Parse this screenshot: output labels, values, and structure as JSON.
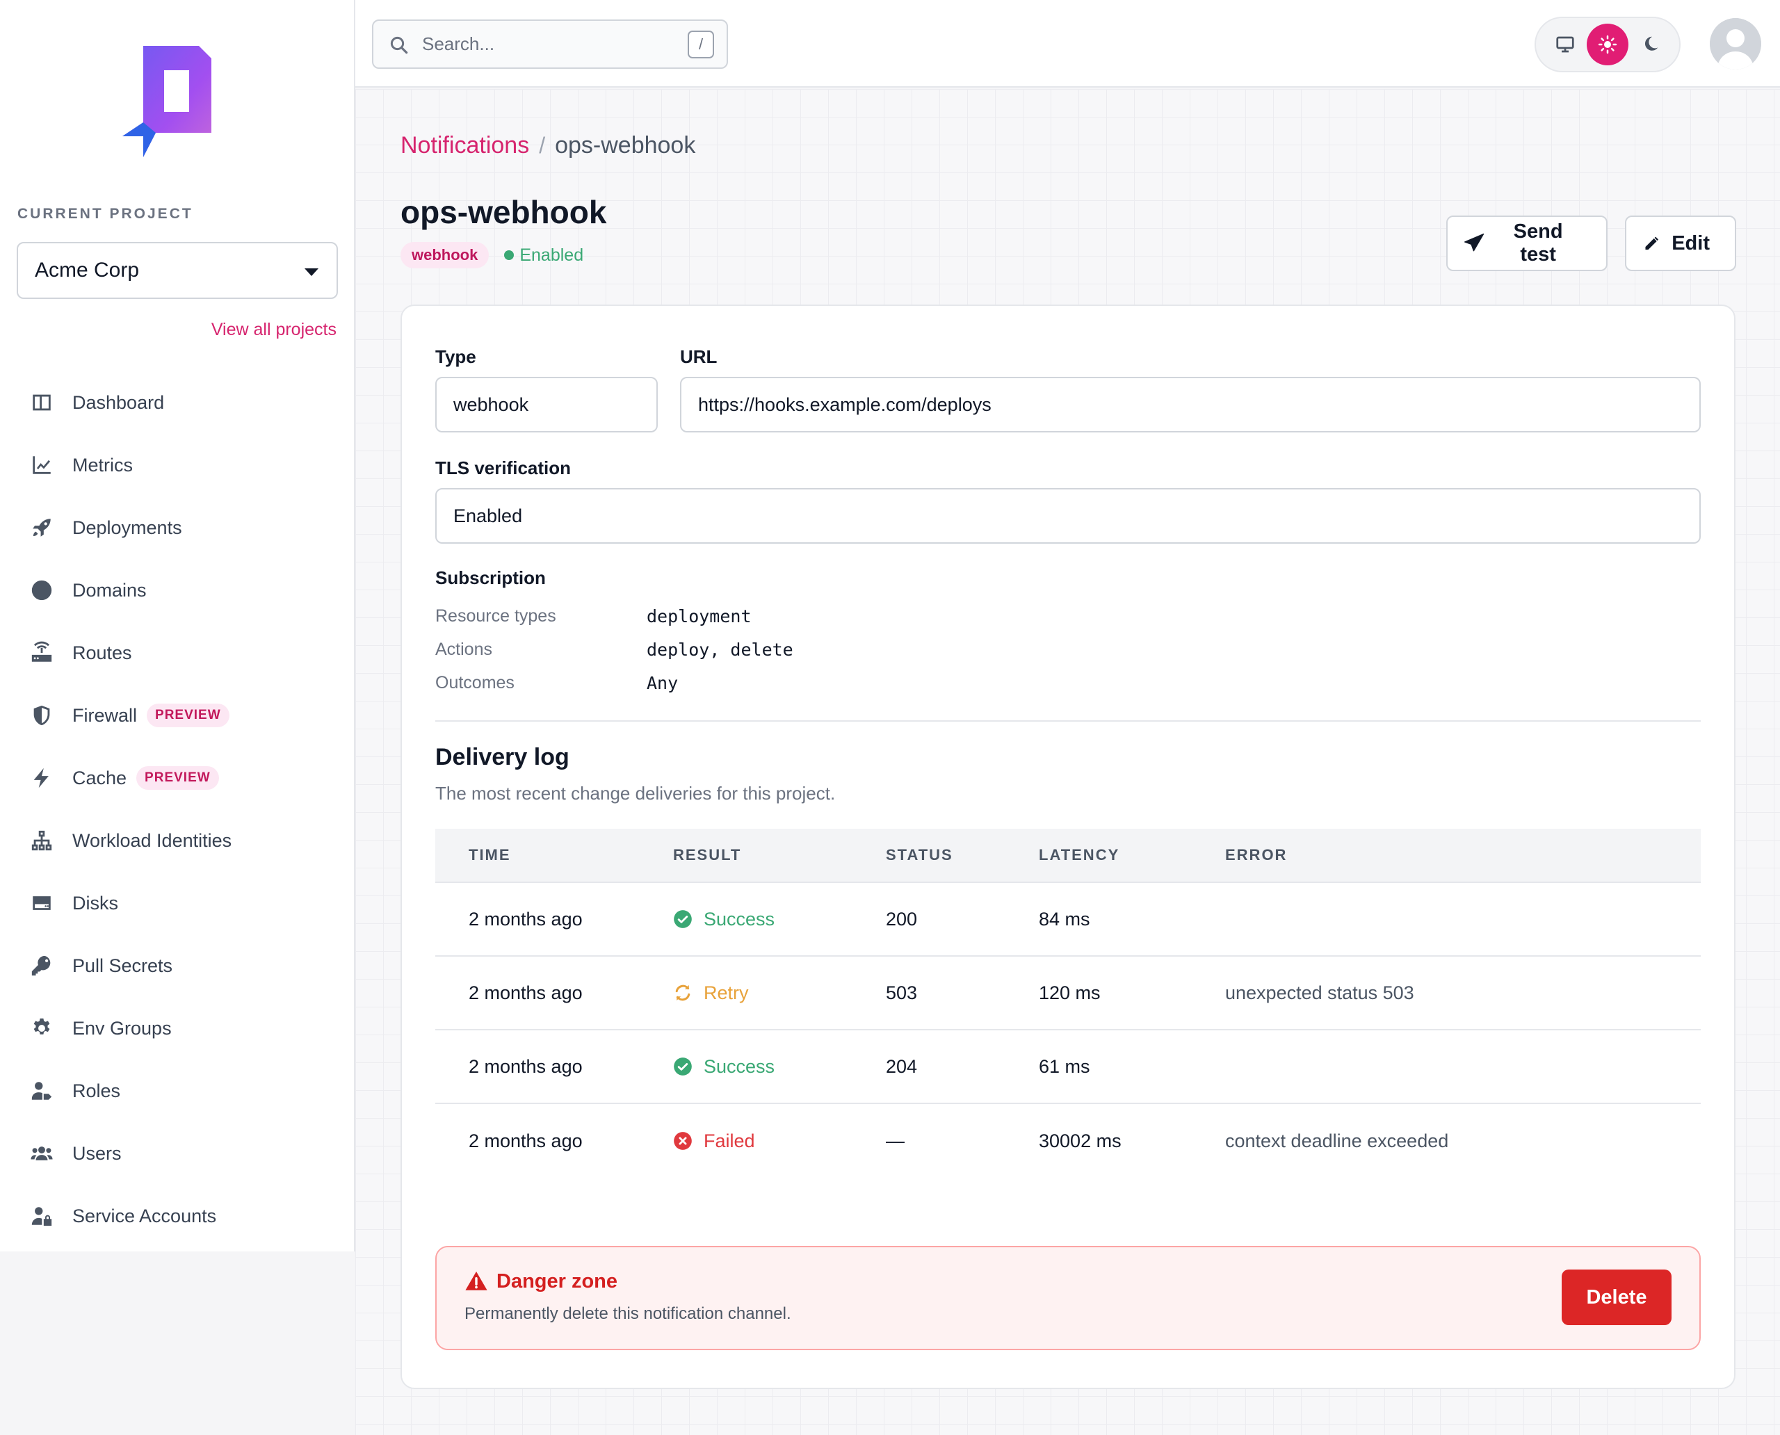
{
  "sidebar": {
    "current_project_label": "CURRENT PROJECT",
    "project": "Acme Corp",
    "view_all": "View all projects",
    "items": [
      {
        "label": "Dashboard",
        "icon": "dashboard-icon"
      },
      {
        "label": "Metrics",
        "icon": "chart-line-icon"
      },
      {
        "label": "Deployments",
        "icon": "rocket-icon"
      },
      {
        "label": "Domains",
        "icon": "globe-icon"
      },
      {
        "label": "Routes",
        "icon": "router-icon"
      },
      {
        "label": "Firewall",
        "icon": "shield-icon",
        "badge": "PREVIEW"
      },
      {
        "label": "Cache",
        "icon": "bolt-icon",
        "badge": "PREVIEW"
      },
      {
        "label": "Workload Identities",
        "icon": "network-icon"
      },
      {
        "label": "Disks",
        "icon": "disk-icon"
      },
      {
        "label": "Pull Secrets",
        "icon": "key-icon"
      },
      {
        "label": "Env Groups",
        "icon": "gear-icon"
      },
      {
        "label": "Roles",
        "icon": "user-tag-icon"
      },
      {
        "label": "Users",
        "icon": "users-icon"
      },
      {
        "label": "Service Accounts",
        "icon": "user-lock-icon"
      }
    ]
  },
  "topbar": {
    "search_placeholder": "Search...",
    "search_shortcut": "/",
    "theme_options": [
      "system",
      "light",
      "dark"
    ],
    "theme_selected": "light"
  },
  "breadcrumb": {
    "parent": "Notifications",
    "separator": "/",
    "current": "ops-webhook"
  },
  "page": {
    "title": "ops-webhook",
    "type_badge": "webhook",
    "status": "Enabled",
    "send_test_label": "Send test",
    "edit_label": "Edit"
  },
  "details": {
    "type_label": "Type",
    "type_value": "webhook",
    "url_label": "URL",
    "url_value": "https://hooks.example.com/deploys",
    "tls_label": "TLS verification",
    "tls_value": "Enabled",
    "subscription_label": "Subscription",
    "subscription": [
      {
        "key": "Resource types",
        "value": "deployment"
      },
      {
        "key": "Actions",
        "value": "deploy, delete"
      },
      {
        "key": "Outcomes",
        "value": "Any"
      }
    ]
  },
  "delivery_log": {
    "title": "Delivery log",
    "subtitle": "The most recent change deliveries for this project.",
    "columns": [
      "TIME",
      "RESULT",
      "STATUS",
      "LATENCY",
      "ERROR"
    ],
    "rows": [
      {
        "time": "2 months ago",
        "result": "Success",
        "status": "200",
        "latency": "84 ms",
        "error": ""
      },
      {
        "time": "2 months ago",
        "result": "Retry",
        "status": "503",
        "latency": "120 ms",
        "error": "unexpected status 503"
      },
      {
        "time": "2 months ago",
        "result": "Success",
        "status": "204",
        "latency": "61 ms",
        "error": ""
      },
      {
        "time": "2 months ago",
        "result": "Failed",
        "status": "—",
        "latency": "30002 ms",
        "error": "context deadline exceeded"
      }
    ]
  },
  "danger_zone": {
    "title": "Danger zone",
    "description": "Permanently delete this notification channel.",
    "delete_label": "Delete"
  },
  "colors": {
    "accent": "#d6246e",
    "success": "#3aa874",
    "retry": "#e8a23a",
    "failed": "#e0393e",
    "danger": "#dc2626"
  }
}
